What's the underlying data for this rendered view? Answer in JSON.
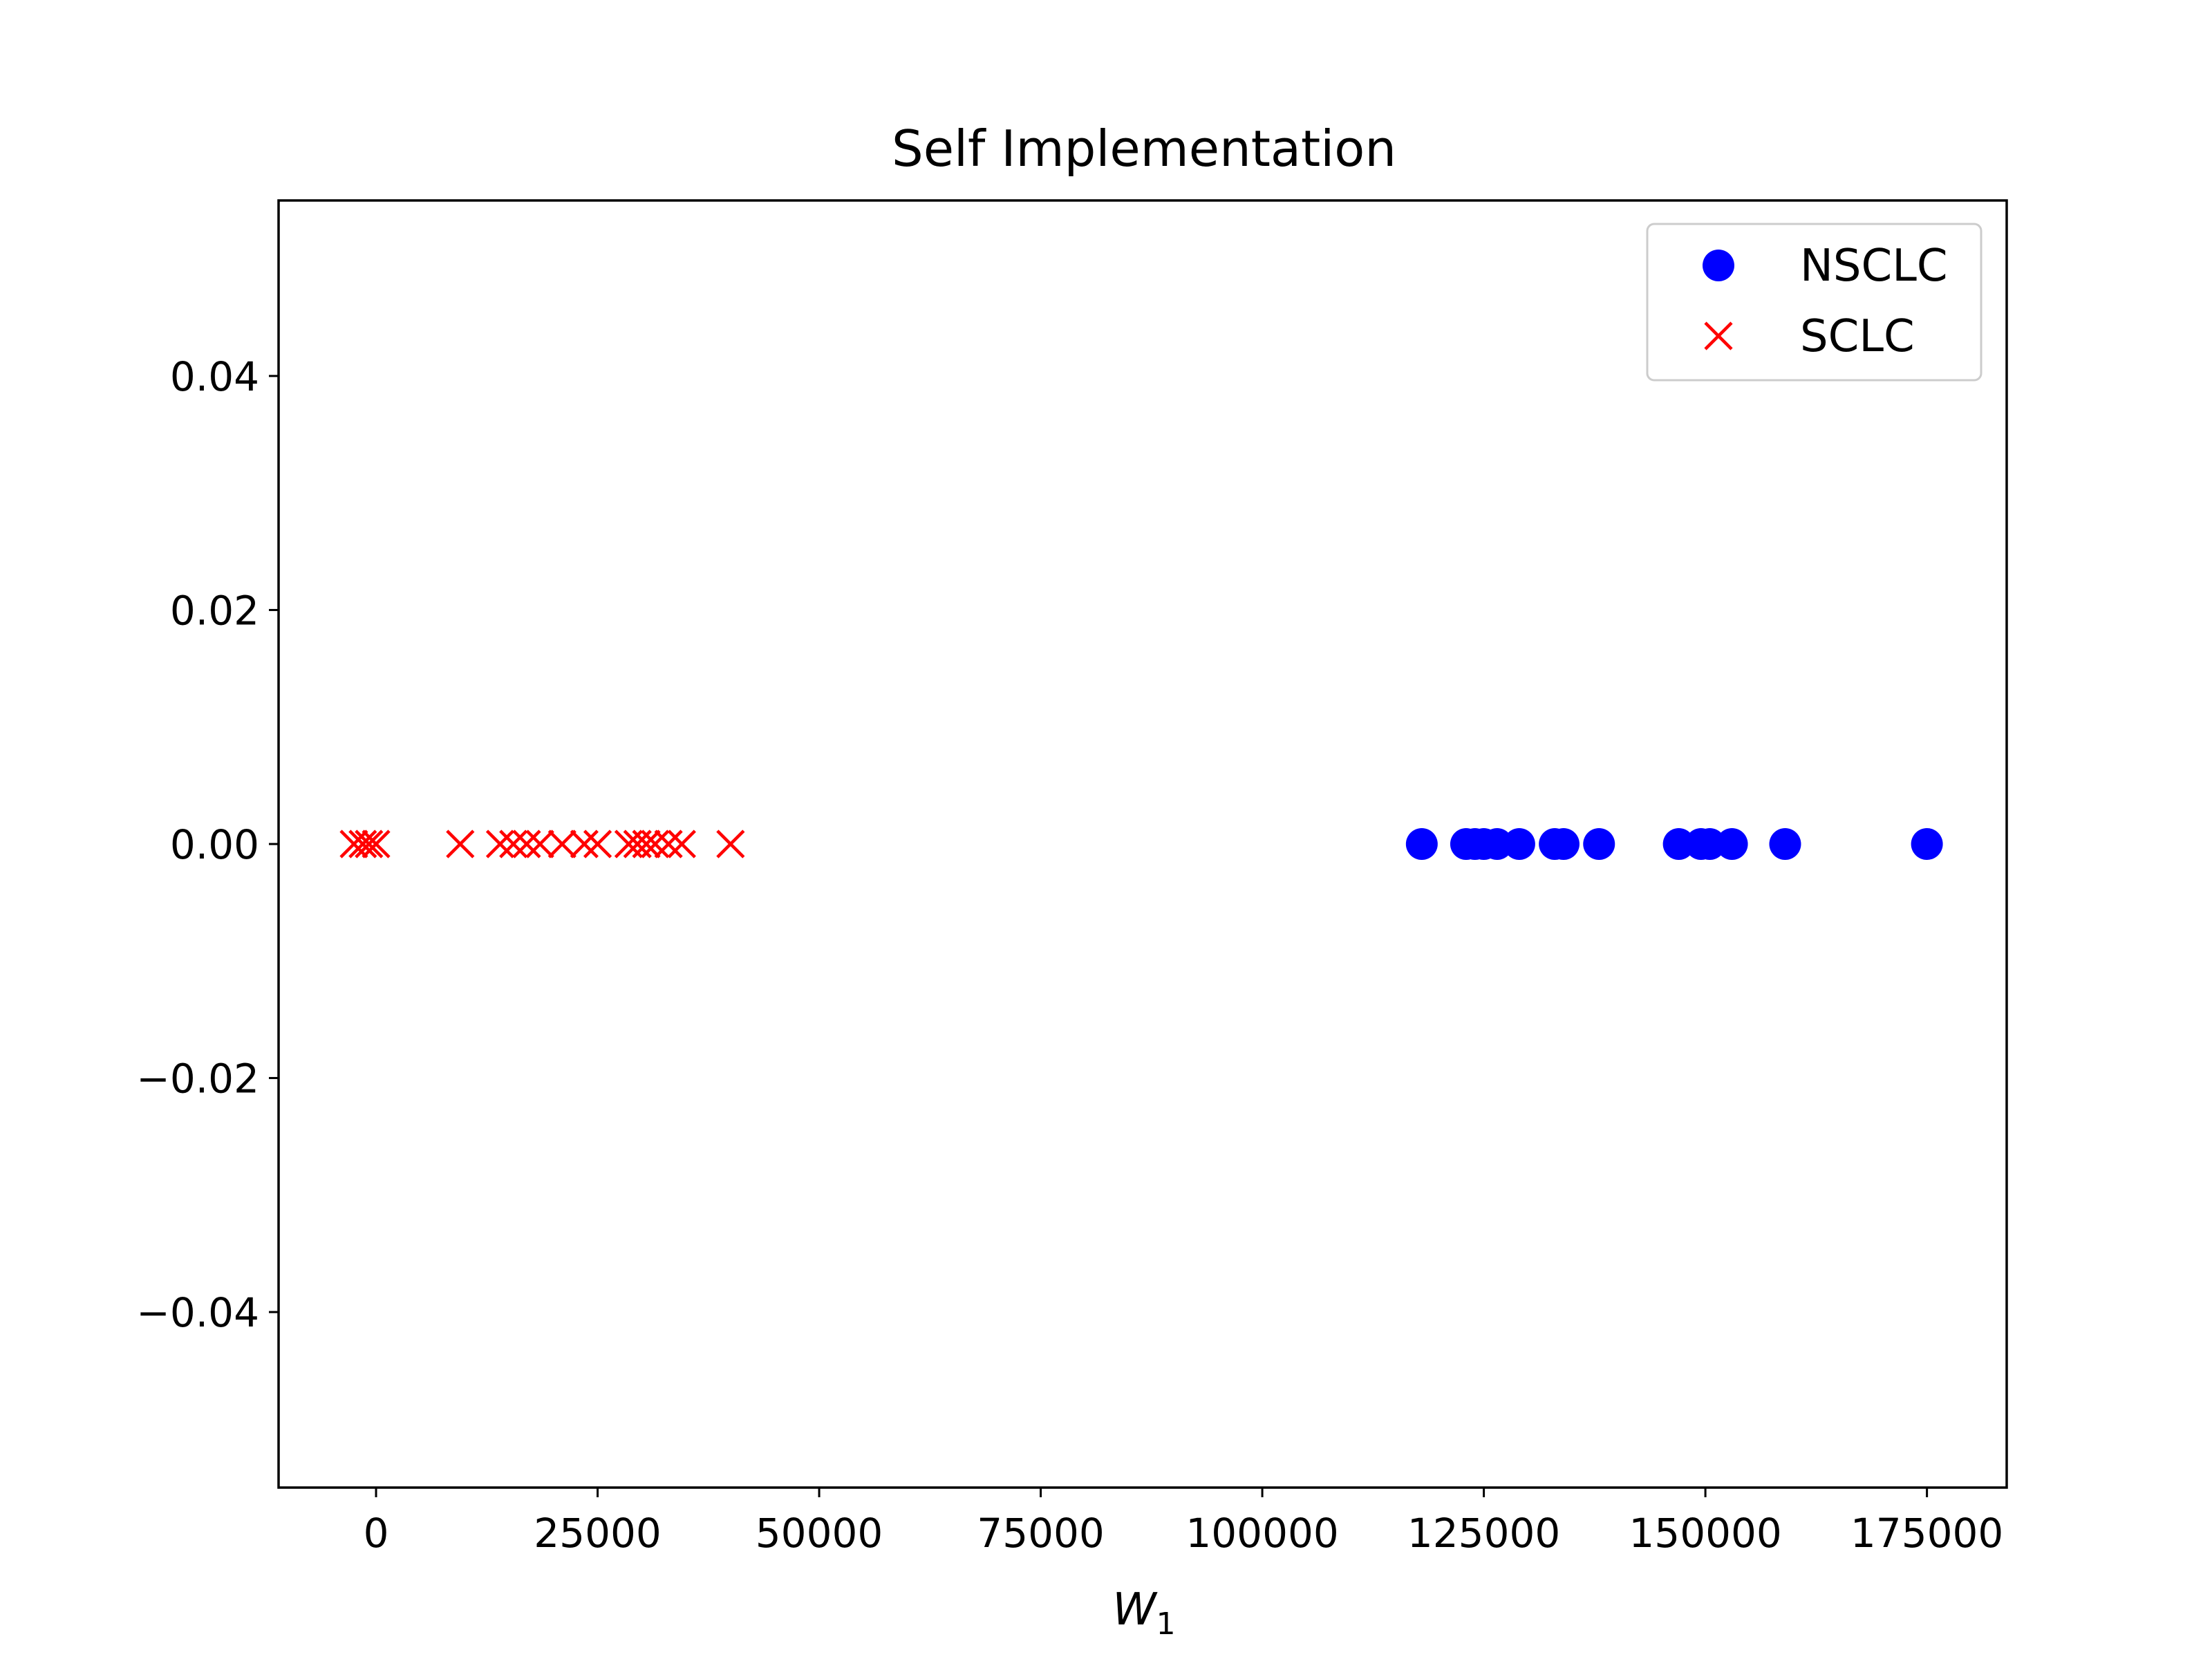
{
  "chart_data": {
    "type": "scatter",
    "title": "Self Implementation",
    "xlabel": "W",
    "xlabel_subscript": "1",
    "ylabel": "",
    "xlim": [
      -11000,
      184000
    ],
    "ylim": [
      -0.055,
      0.055
    ],
    "x_ticks": [
      0,
      25000,
      50000,
      75000,
      100000,
      125000,
      150000,
      175000
    ],
    "x_tick_labels": [
      "0",
      "25000",
      "50000",
      "75000",
      "100000",
      "125000",
      "150000",
      "175000"
    ],
    "y_ticks": [
      0.04,
      0.02,
      0.0,
      -0.02,
      -0.04
    ],
    "y_tick_labels": [
      "0.04",
      "0.02",
      "0.00",
      "−0.02",
      "−0.04"
    ],
    "grid": false,
    "legend": "top-right",
    "series": [
      {
        "name": "NSCLC",
        "marker": "circle",
        "color": "#0000ff",
        "x": [
          118000,
          123000,
          124000,
          125000,
          126500,
          129000,
          133000,
          134000,
          138000,
          147000,
          149500,
          150500,
          153000,
          159000,
          175000
        ],
        "y": [
          0,
          0,
          0,
          0,
          0,
          0,
          0,
          0,
          0,
          0,
          0,
          0,
          0,
          0,
          0
        ]
      },
      {
        "name": "SCLC",
        "marker": "x",
        "color": "#ff0000",
        "x": [
          -2500,
          -1500,
          -800,
          0,
          9500,
          14000,
          15500,
          17000,
          18500,
          21000,
          23500,
          25000,
          28500,
          29500,
          30500,
          31500,
          33000,
          34500,
          40000
        ],
        "y": [
          0,
          0,
          0,
          0,
          0,
          0,
          0,
          0,
          0,
          0,
          0,
          0,
          0,
          0,
          0,
          0,
          0,
          0,
          0
        ]
      }
    ]
  }
}
